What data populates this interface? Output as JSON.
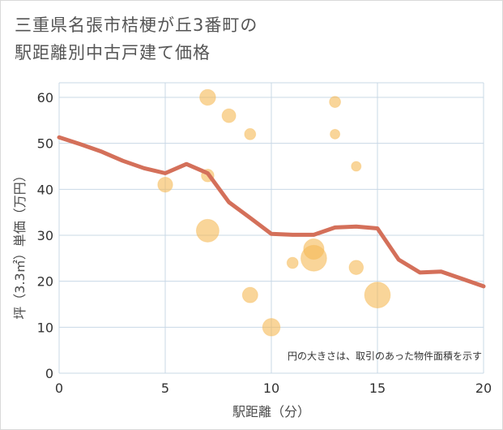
{
  "title": {
    "line1": "三重県名張市桔梗が丘3番町の",
    "line2": "駅距離別中古戸建て価格"
  },
  "note": "円の大きさは、取引のあった物件面積を示す",
  "colors": {
    "line": "#d4705a",
    "bubble": "#f5b955",
    "grid": "#c8d8e6",
    "axis": "#333333"
  },
  "chart_data": {
    "type": "scatter",
    "xlabel": "駅距離（分）",
    "ylabel": "坪（3.3㎡）単価（万円）",
    "xlim": [
      0,
      20
    ],
    "ylim": [
      0,
      63
    ],
    "xticks": [
      0,
      5,
      10,
      15,
      20
    ],
    "yticks": [
      0,
      10,
      20,
      30,
      40,
      50,
      60
    ],
    "trend_line": {
      "x": [
        0,
        1,
        2,
        3,
        4,
        5,
        6,
        7,
        8,
        9,
        10,
        11,
        12,
        13,
        14,
        15,
        16,
        17,
        18,
        19,
        20
      ],
      "y": [
        51.3,
        49.8,
        48.2,
        46.2,
        44.6,
        43.5,
        45.5,
        43.5,
        37.2,
        33.8,
        30.3,
        30.1,
        30.1,
        31.7,
        31.9,
        31.5,
        24.7,
        21.9,
        22.1,
        20.5,
        18.9
      ]
    },
    "points": [
      {
        "x": 7,
        "y": 60,
        "size": 3
      },
      {
        "x": 13,
        "y": 59,
        "size": 1
      },
      {
        "x": 8,
        "y": 56,
        "size": 2
      },
      {
        "x": 9,
        "y": 52,
        "size": 1
      },
      {
        "x": 13,
        "y": 52,
        "size": 0.6
      },
      {
        "x": 14,
        "y": 45,
        "size": 0.6
      },
      {
        "x": 7,
        "y": 43,
        "size": 1.5
      },
      {
        "x": 5,
        "y": 41,
        "size": 2.5
      },
      {
        "x": 7,
        "y": 31,
        "size": 8
      },
      {
        "x": 12,
        "y": 27,
        "size": 6
      },
      {
        "x": 12,
        "y": 25,
        "size": 11
      },
      {
        "x": 11,
        "y": 24,
        "size": 1
      },
      {
        "x": 14,
        "y": 23,
        "size": 2.2
      },
      {
        "x": 9,
        "y": 17,
        "size": 2.8
      },
      {
        "x": 15,
        "y": 17,
        "size": 11
      },
      {
        "x": 10,
        "y": 10,
        "size": 4
      }
    ]
  }
}
